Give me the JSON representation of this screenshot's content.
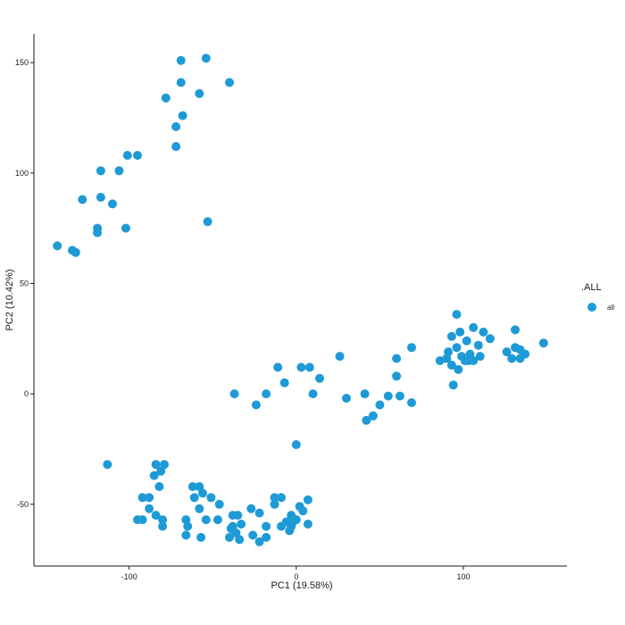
{
  "chart_data": {
    "type": "scatter",
    "title": "",
    "xlabel": "PC1 (19.58%)",
    "ylabel": "PC2 (10.42%)",
    "xlim": [
      -157,
      162
    ],
    "ylim": [
      -78,
      163
    ],
    "xticks": [
      -100,
      0,
      100
    ],
    "xtick_labels": [
      "-100",
      "0",
      "100"
    ],
    "yticks": [
      -50,
      0,
      50,
      100,
      150
    ],
    "ytick_labels": [
      "-50",
      "0",
      "50",
      "100",
      "150"
    ],
    "grid": false,
    "legend_placement": "right",
    "legend_title": ".ALL",
    "point_color": "#1E9AD6",
    "series": [
      {
        "name": "all",
        "points": [
          [
            -69,
            151
          ],
          [
            -54,
            152
          ],
          [
            -69,
            141
          ],
          [
            -40,
            141
          ],
          [
            -78,
            134
          ],
          [
            -58,
            136
          ],
          [
            -68,
            126
          ],
          [
            -72,
            121
          ],
          [
            -72,
            112
          ],
          [
            -101,
            108
          ],
          [
            -95,
            108
          ],
          [
            -117,
            101
          ],
          [
            -106,
            101
          ],
          [
            -128,
            88
          ],
          [
            -117,
            89
          ],
          [
            -110,
            86
          ],
          [
            -119,
            75
          ],
          [
            -119,
            73
          ],
          [
            -102,
            75
          ],
          [
            -53,
            78
          ],
          [
            -143,
            67
          ],
          [
            -134,
            65
          ],
          [
            -132,
            64
          ],
          [
            96,
            36
          ],
          [
            106,
            30
          ],
          [
            112,
            28
          ],
          [
            93,
            26
          ],
          [
            98,
            28
          ],
          [
            131,
            29
          ],
          [
            116,
            25
          ],
          [
            69,
            21
          ],
          [
            102,
            24
          ],
          [
            109,
            22
          ],
          [
            96,
            21
          ],
          [
            91,
            19
          ],
          [
            126,
            19
          ],
          [
            131,
            21
          ],
          [
            134,
            20
          ],
          [
            148,
            23
          ],
          [
            137,
            18
          ],
          [
            129,
            16
          ],
          [
            134,
            16
          ],
          [
            86,
            15
          ],
          [
            90,
            16
          ],
          [
            99,
            17
          ],
          [
            104,
            18
          ],
          [
            106,
            15
          ],
          [
            110,
            17
          ],
          [
            93,
            13
          ],
          [
            97,
            11
          ],
          [
            101,
            15
          ],
          [
            103,
            15
          ],
          [
            94,
            4
          ],
          [
            60,
            16
          ],
          [
            26,
            17
          ],
          [
            3,
            12
          ],
          [
            8,
            12
          ],
          [
            -11,
            12
          ],
          [
            -7,
            5
          ],
          [
            14,
            7
          ],
          [
            60,
            8
          ],
          [
            -37,
            0
          ],
          [
            -18,
            0
          ],
          [
            10,
            0
          ],
          [
            41,
            0
          ],
          [
            55,
            -1
          ],
          [
            62,
            -1
          ],
          [
            30,
            -2
          ],
          [
            -24,
            -5
          ],
          [
            50,
            -5
          ],
          [
            69,
            -4
          ],
          [
            46,
            -10
          ],
          [
            42,
            -12
          ],
          [
            0,
            -23
          ],
          [
            -113,
            -32
          ],
          [
            -84,
            -32
          ],
          [
            -79,
            -32
          ],
          [
            -81,
            -35
          ],
          [
            -85,
            -37
          ],
          [
            -82,
            -42
          ],
          [
            -62,
            -42
          ],
          [
            -58,
            -42
          ],
          [
            -56,
            -45
          ],
          [
            -51,
            -47
          ],
          [
            -88,
            -47
          ],
          [
            -92,
            -47
          ],
          [
            -61,
            -47
          ],
          [
            -13,
            -47
          ],
          [
            -9,
            -47
          ],
          [
            7,
            -48
          ],
          [
            -13,
            -50
          ],
          [
            -46,
            -50
          ],
          [
            2,
            -51
          ],
          [
            -58,
            -52
          ],
          [
            -88,
            -52
          ],
          [
            -27,
            -52
          ],
          [
            4,
            -53
          ],
          [
            -22,
            -54
          ],
          [
            -84,
            -55
          ],
          [
            -38,
            -55
          ],
          [
            -35,
            -55
          ],
          [
            -3,
            -55
          ],
          [
            -80,
            -57
          ],
          [
            -92,
            -57
          ],
          [
            -95,
            -57
          ],
          [
            -66,
            -57
          ],
          [
            -54,
            -57
          ],
          [
            -47,
            -57
          ],
          [
            0,
            -57
          ],
          [
            -6,
            -58
          ],
          [
            -2,
            -58
          ],
          [
            -33,
            -59
          ],
          [
            -18,
            -60
          ],
          [
            -9,
            -60
          ],
          [
            -3,
            -60
          ],
          [
            -80,
            -60
          ],
          [
            -65,
            -60
          ],
          [
            -38,
            -60
          ],
          [
            -39,
            -61
          ],
          [
            7,
            -59
          ],
          [
            -4,
            -62
          ],
          [
            -36,
            -63
          ],
          [
            -26,
            -64
          ],
          [
            -18,
            -65
          ],
          [
            -40,
            -65
          ],
          [
            -66,
            -64
          ],
          [
            -57,
            -65
          ],
          [
            -34,
            -66
          ],
          [
            -22,
            -67
          ]
        ]
      }
    ]
  }
}
